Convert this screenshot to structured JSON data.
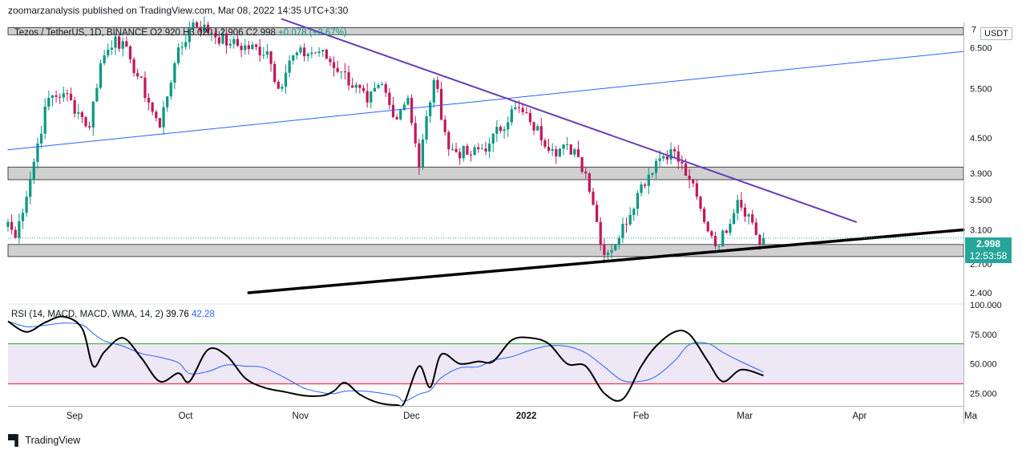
{
  "header": {
    "publisher": "zoomarzanalysis published on TradingView.com, Mar 08, 2022 14:35 UTC+3:30",
    "symbol": "Tezos / TetherUS, 1D, BINANCE",
    "open": "O2.920",
    "high": "H3.020",
    "low": "L2.906",
    "close": "C2.998",
    "change": "+0.078 (+2.67%)",
    "currency": "USDT"
  },
  "price_badge": {
    "price": "2.998",
    "countdown": "12:53:58"
  },
  "rsi_legend": {
    "label": "RSI (14, MACD, MACD, WMA, 14, 2)",
    "value1": "39.76",
    "value2": "42.28"
  },
  "footer": {
    "brand": "TradingView"
  },
  "colors": {
    "up": "#089981",
    "down": "#c2185b",
    "purple_line": "#673ab7",
    "blue_line": "#2962ff",
    "support_line": "#000000",
    "rsi_line": "#000000",
    "rsi_ma": "#2962ff",
    "rsi_upper": "#4caf50",
    "rsi_lower": "#f23645",
    "rsi_band": "#ede7f6",
    "zone": "#c8c8c8",
    "badge": "#26a69a"
  },
  "chart_data": {
    "type": "candlestick",
    "symbol": "Tezos / TetherUS",
    "interval": "1D",
    "exchange": "BINANCE",
    "price_axis": {
      "scale": "log",
      "ticks": [
        "7",
        "6.500",
        "5.500",
        "4.500",
        "3.900",
        "3.500",
        "3.100",
        "2.700",
        "2.400"
      ],
      "ylim": [
        2.3,
        7.2
      ]
    },
    "time_axis": {
      "labels": [
        "Sep",
        "Oct",
        "Nov",
        "Dec",
        "2022",
        "Feb",
        "Mar",
        "Apr",
        "Ma"
      ],
      "start": "2021-08-16",
      "end": "2022-05-01"
    },
    "ohlc_anchors": [
      [
        "2021-08-16",
        3.2
      ],
      [
        "2021-08-18",
        3.0
      ],
      [
        "2021-08-22",
        3.8
      ],
      [
        "2021-08-27",
        5.3
      ],
      [
        "2021-08-31",
        5.4
      ],
      [
        "2021-09-04",
        5.0
      ],
      [
        "2021-09-07",
        4.7
      ],
      [
        "2021-09-10",
        6.1
      ],
      [
        "2021-09-14",
        6.8
      ],
      [
        "2021-09-18",
        6.2
      ],
      [
        "2021-09-23",
        5.2
      ],
      [
        "2021-09-26",
        4.7
      ],
      [
        "2021-09-30",
        6.1
      ],
      [
        "2021-10-05",
        7.2
      ],
      [
        "2021-10-10",
        6.9
      ],
      [
        "2021-10-15",
        6.6
      ],
      [
        "2021-10-25",
        6.4
      ],
      [
        "2021-10-28",
        5.5
      ],
      [
        "2021-11-01",
        6.3
      ],
      [
        "2021-11-08",
        6.4
      ],
      [
        "2021-11-14",
        5.9
      ],
      [
        "2021-11-21",
        5.2
      ],
      [
        "2021-11-25",
        5.6
      ],
      [
        "2021-11-28",
        4.9
      ],
      [
        "2021-12-02",
        5.3
      ],
      [
        "2021-12-05",
        4.0
      ],
      [
        "2021-12-09",
        5.7
      ],
      [
        "2021-12-13",
        4.3
      ],
      [
        "2021-12-19",
        4.2
      ],
      [
        "2021-12-24",
        4.4
      ],
      [
        "2021-12-31",
        5.1
      ],
      [
        "2022-01-04",
        4.8
      ],
      [
        "2022-01-10",
        4.3
      ],
      [
        "2022-01-16",
        4.3
      ],
      [
        "2022-01-19",
        3.9
      ],
      [
        "2022-01-22",
        3.2
      ],
      [
        "2022-01-24",
        2.8
      ],
      [
        "2022-01-28",
        3.0
      ],
      [
        "2022-02-02",
        3.6
      ],
      [
        "2022-02-07",
        4.1
      ],
      [
        "2022-02-11",
        4.3
      ],
      [
        "2022-02-16",
        3.8
      ],
      [
        "2022-02-20",
        3.2
      ],
      [
        "2022-02-24",
        2.9
      ],
      [
        "2022-03-01",
        3.5
      ],
      [
        "2022-03-04",
        3.3
      ],
      [
        "2022-03-07",
        2.92
      ],
      [
        "2022-03-08",
        2.998
      ]
    ],
    "zones": [
      {
        "from": 6.85,
        "to": 7.05
      },
      {
        "from": 3.8,
        "to": 4.0
      },
      {
        "from": 2.78,
        "to": 2.92
      }
    ],
    "trendlines": [
      {
        "name": "descending",
        "color": "#673ab7",
        "from": [
          "2021-10-29",
          7.3
        ],
        "to": [
          "2022-04-02",
          3.2
        ]
      },
      {
        "name": "ascending-upper",
        "color": "#2962ff",
        "from": [
          "2021-08-16",
          4.29
        ],
        "to": [
          "2022-05-01",
          6.4
        ]
      },
      {
        "name": "ascending-support",
        "color": "#000000",
        "from": [
          "2021-10-20",
          2.4
        ],
        "to": [
          "2022-05-01",
          3.1
        ]
      }
    ],
    "rsi": {
      "axis_ticks": [
        "100.000",
        "75.000",
        "50.000",
        "25.000"
      ],
      "ylim": [
        15,
        100
      ],
      "upper": 67,
      "lower": 33,
      "anchors": [
        [
          "2021-08-16",
          86
        ],
        [
          "2021-08-21",
          77
        ],
        [
          "2021-08-26",
          85
        ],
        [
          "2021-08-31",
          90
        ],
        [
          "2021-09-05",
          80
        ],
        [
          "2021-09-08",
          48
        ],
        [
          "2021-09-11",
          60
        ],
        [
          "2021-09-16",
          72
        ],
        [
          "2021-09-21",
          55
        ],
        [
          "2021-09-26",
          35
        ],
        [
          "2021-10-01",
          42
        ],
        [
          "2021-10-04",
          35
        ],
        [
          "2021-10-09",
          62
        ],
        [
          "2021-10-14",
          57
        ],
        [
          "2021-10-19",
          38
        ],
        [
          "2021-10-24",
          30
        ],
        [
          "2021-10-30",
          26
        ],
        [
          "2021-11-04",
          23
        ],
        [
          "2021-11-09",
          23
        ],
        [
          "2021-11-12",
          27
        ],
        [
          "2021-11-15",
          34
        ],
        [
          "2021-11-19",
          24
        ],
        [
          "2021-11-24",
          17
        ],
        [
          "2021-11-29",
          15
        ],
        [
          "2021-12-01",
          17
        ],
        [
          "2021-12-05",
          48
        ],
        [
          "2021-12-08",
          30
        ],
        [
          "2021-12-11",
          58
        ],
        [
          "2021-12-16",
          50
        ],
        [
          "2021-12-21",
          52
        ],
        [
          "2021-12-25",
          52
        ],
        [
          "2021-12-30",
          70
        ],
        [
          "2022-01-04",
          72
        ],
        [
          "2022-01-09",
          67
        ],
        [
          "2022-01-14",
          50
        ],
        [
          "2022-01-19",
          48
        ],
        [
          "2022-01-24",
          25
        ],
        [
          "2022-01-29",
          20
        ],
        [
          "2022-02-03",
          48
        ],
        [
          "2022-02-07",
          65
        ],
        [
          "2022-02-12",
          77
        ],
        [
          "2022-02-16",
          75
        ],
        [
          "2022-02-21",
          52
        ],
        [
          "2022-02-25",
          35
        ],
        [
          "2022-03-02",
          45
        ],
        [
          "2022-03-08",
          40
        ]
      ]
    }
  }
}
